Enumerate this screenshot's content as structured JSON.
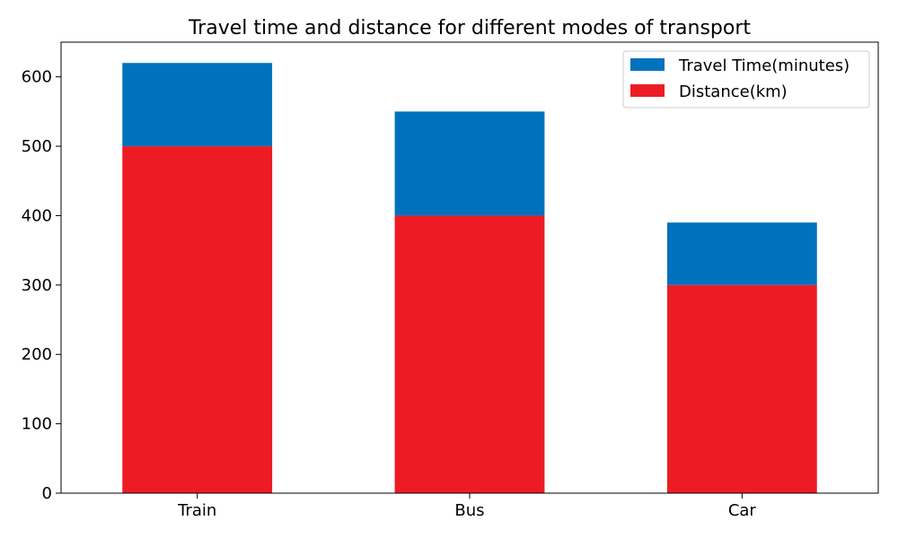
{
  "chart_data": {
    "type": "bar",
    "stacked": true,
    "title": "Travel time and distance for different modes of transport",
    "xlabel": "",
    "ylabel": "",
    "categories": [
      "Train",
      "Bus",
      "Car"
    ],
    "series": [
      {
        "name": "Distance(km)",
        "values": [
          500,
          400,
          300
        ],
        "color": "#ed1c24"
      },
      {
        "name": "Travel Time(minutes)",
        "values": [
          120,
          150,
          90
        ],
        "color": "#0072bd"
      }
    ],
    "ylim": [
      0,
      650
    ],
    "yticks": [
      0,
      100,
      200,
      300,
      400,
      500,
      600
    ],
    "grid": false,
    "legend": {
      "placement": "top-right",
      "order": [
        "Travel Time(minutes)",
        "Distance(km)"
      ]
    }
  }
}
